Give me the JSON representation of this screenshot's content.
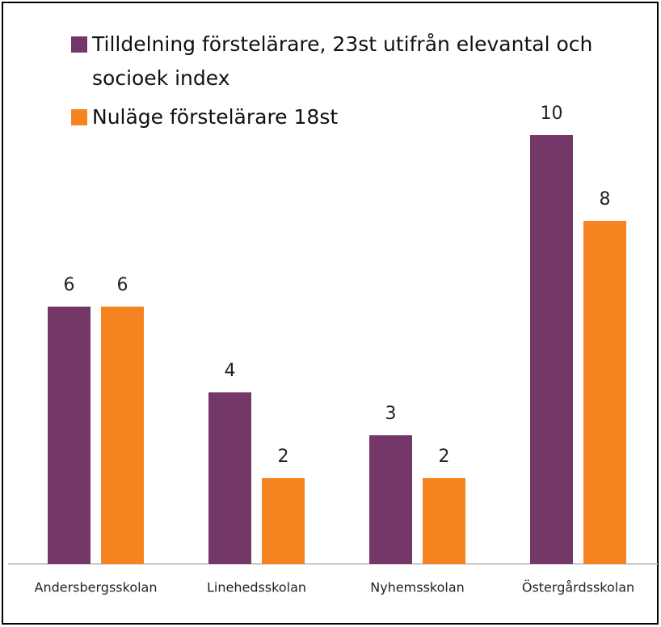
{
  "chart_data": {
    "type": "bar",
    "categories": [
      "Andersbergsskolan",
      "Linehedsskolan",
      "Nyhemsskolan",
      "Östergårdsskolan"
    ],
    "series": [
      {
        "name": "Tilldelning förstelärare, 23st utifrån elevantal och socioek index",
        "color": "#733768",
        "values": [
          6,
          4,
          3,
          10
        ]
      },
      {
        "name": "Nuläge förstelärare 18st",
        "color": "#f58420",
        "values": [
          6,
          2,
          2,
          8
        ]
      }
    ],
    "ylim": [
      0,
      10
    ]
  }
}
